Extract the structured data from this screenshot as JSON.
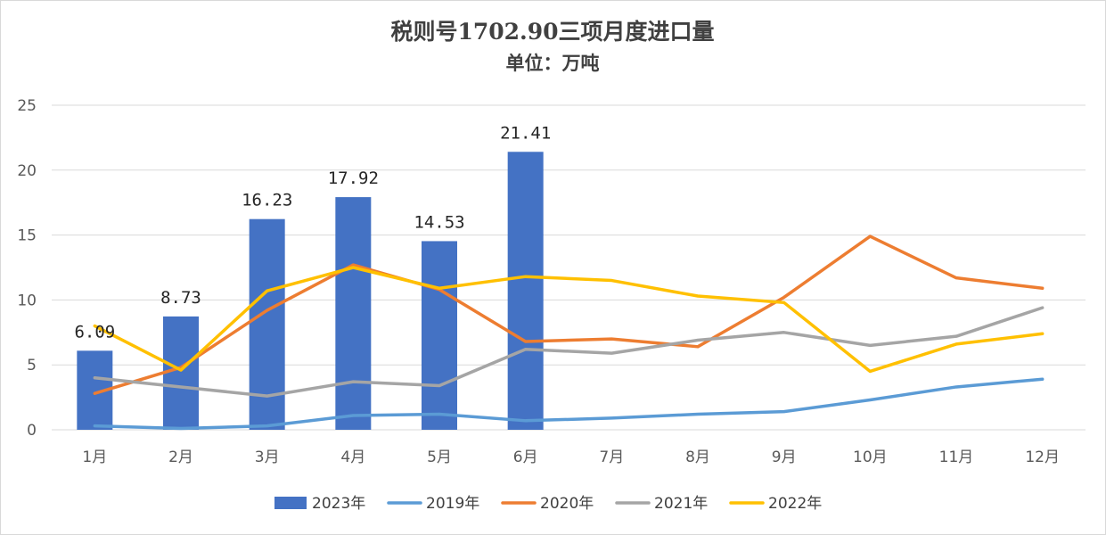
{
  "chart_data": {
    "type": "bar",
    "title": "税则号1702.90三项月度进口量",
    "subtitle": "单位：万吨",
    "categories": [
      "1月",
      "2月",
      "3月",
      "4月",
      "5月",
      "6月",
      "7月",
      "8月",
      "9月",
      "10月",
      "11月",
      "12月"
    ],
    "ylim": [
      0,
      25
    ],
    "yticks": [
      0,
      5,
      10,
      15,
      20,
      25
    ],
    "grid": true,
    "legend_position": "bottom",
    "bar_series": {
      "name": "2023年",
      "color": "#4472C4",
      "values": [
        6.09,
        8.73,
        16.23,
        17.92,
        14.53,
        21.41,
        null,
        null,
        null,
        null,
        null,
        null
      ],
      "labels": [
        "6.09",
        "8.73",
        "16.23",
        "17.92",
        "14.53",
        "21.41"
      ]
    },
    "line_series": [
      {
        "name": "2019年",
        "color": "#5B9BD5",
        "values": [
          0.3,
          0.1,
          0.3,
          1.1,
          1.2,
          0.7,
          0.9,
          1.2,
          1.4,
          2.3,
          3.3,
          3.9
        ]
      },
      {
        "name": "2020年",
        "color": "#ED7D31",
        "values": [
          2.8,
          4.8,
          9.2,
          12.7,
          10.8,
          6.8,
          7.0,
          6.4,
          10.2,
          14.9,
          11.7,
          10.9
        ]
      },
      {
        "name": "2021年",
        "color": "#A5A5A5",
        "values": [
          4.0,
          3.3,
          2.6,
          3.7,
          3.4,
          6.2,
          5.9,
          6.9,
          7.5,
          6.5,
          7.2,
          9.4
        ]
      },
      {
        "name": "2022年",
        "color": "#FFC000",
        "values": [
          8.0,
          4.6,
          10.7,
          12.5,
          10.9,
          11.8,
          11.5,
          10.3,
          9.8,
          4.5,
          6.6,
          7.4
        ]
      }
    ]
  }
}
